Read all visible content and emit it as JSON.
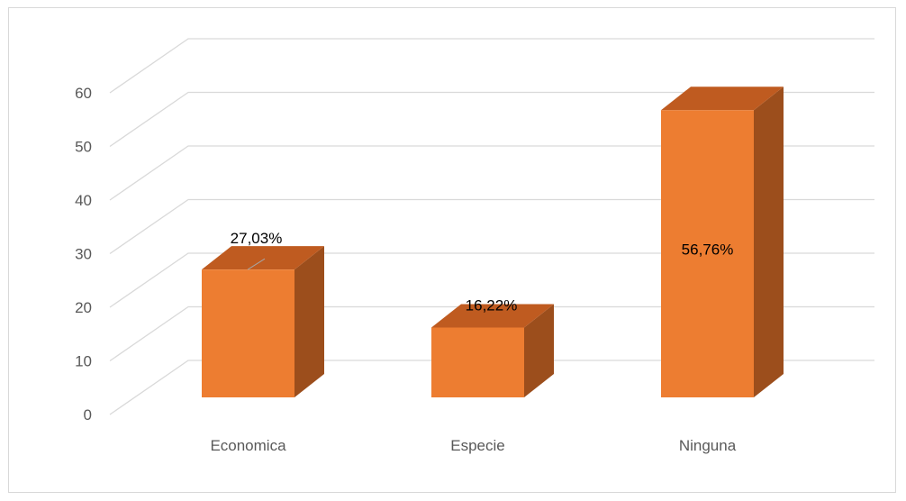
{
  "chart_data": {
    "type": "bar",
    "categories": [
      "Economica",
      "Especie",
      "Ninguna"
    ],
    "values": [
      27.03,
      16.22,
      56.76
    ],
    "data_labels": [
      "27,03%",
      "16,22%",
      "56,76%"
    ],
    "yticks": [
      "0",
      "10",
      "20",
      "30",
      "40",
      "50",
      "60"
    ],
    "ylim": [
      0,
      60
    ],
    "title": "",
    "xlabel": "",
    "ylabel": "",
    "grid": true,
    "legend": "none",
    "style": "3d-column",
    "colors": {
      "front": "#ED7D31",
      "top": "#BF5B20",
      "side": "#9C4E1C",
      "grid": "#d9d9d9",
      "text": "#595959"
    }
  }
}
